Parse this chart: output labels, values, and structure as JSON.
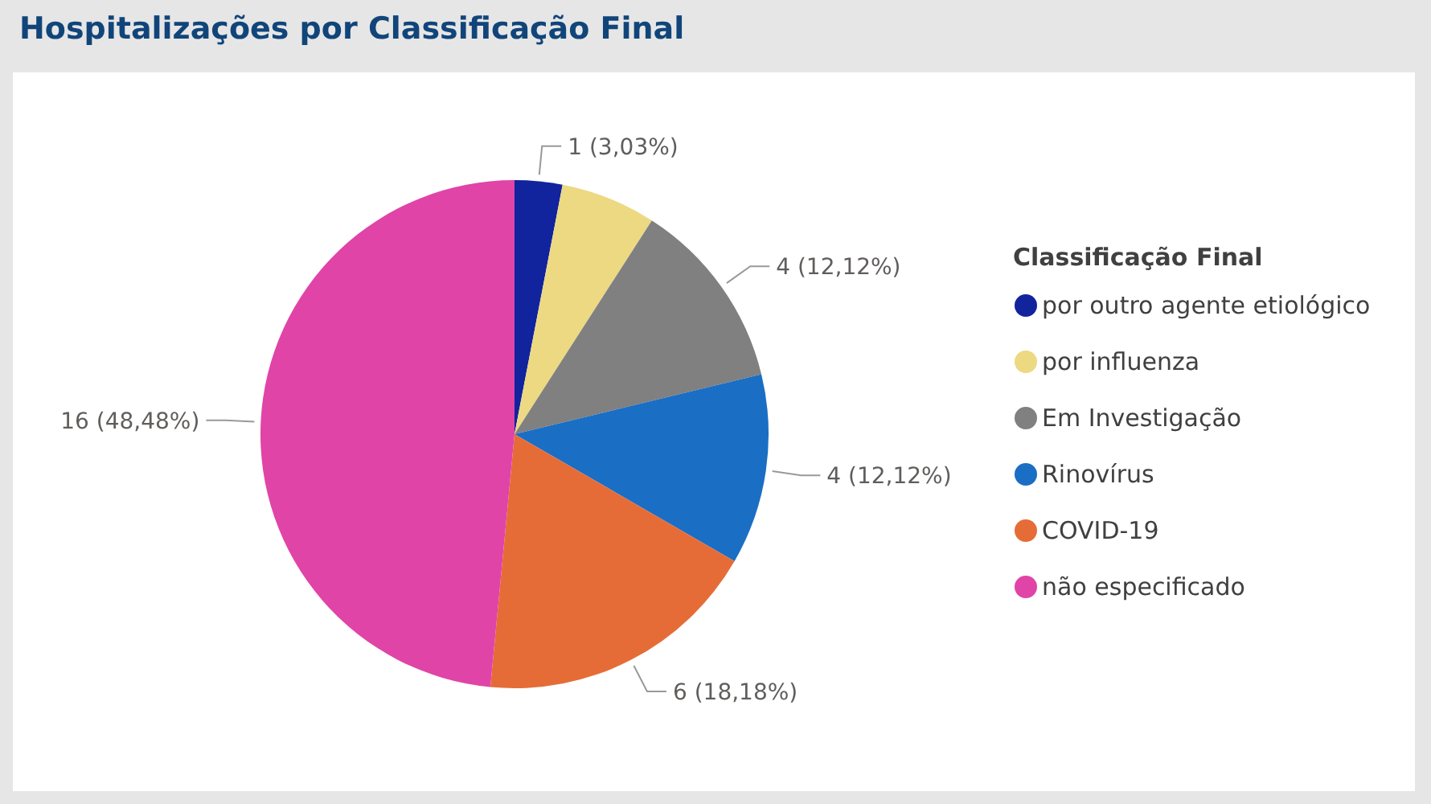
{
  "chart_data": {
    "type": "pie",
    "title": "Hospitalizações por Classificação Final",
    "legend_title": "Classificação Final",
    "legend": "right",
    "categories": [
      "por outro agente etiológico",
      "por influenza",
      "Em Investigação",
      "Rinovírus",
      "COVID-19",
      "não especificado"
    ],
    "values": [
      1,
      2,
      4,
      4,
      6,
      16
    ],
    "colors": [
      "#12239e",
      "#ecd982",
      "#808080",
      "#1a6ec4",
      "#e66c37",
      "#e044a7"
    ],
    "value_labels": [
      "1 (3,03%)",
      null,
      "4 (12,12%)",
      "4 (12,12%)",
      "6 (18,18%)",
      "16 (48,48%)"
    ]
  }
}
